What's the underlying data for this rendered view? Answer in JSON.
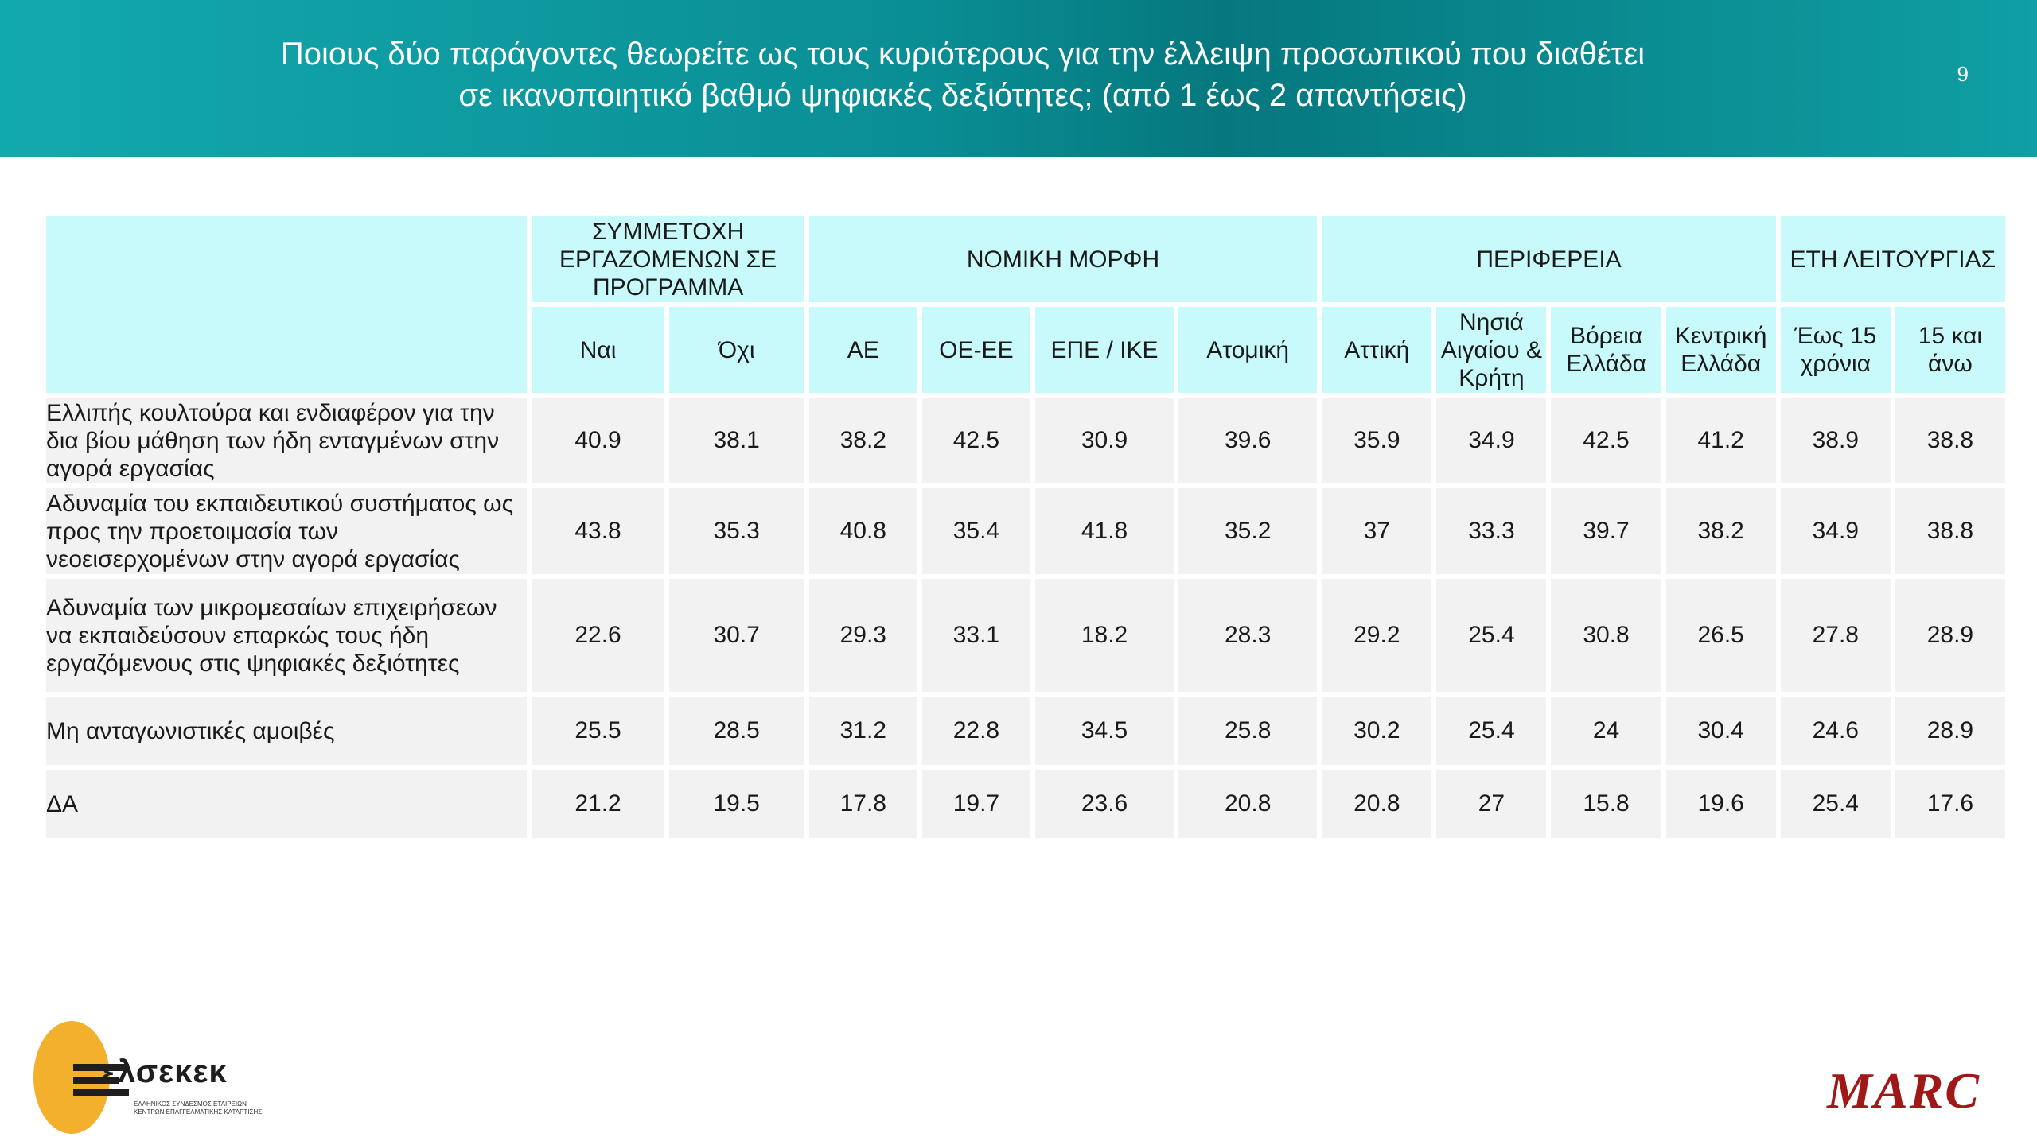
{
  "header": {
    "title": "Ποιους δύο παράγοντες θεωρείτε ως τους κυριότερους για την έλλειψη προσωπικού που διαθέτει\nσε ικανοποιητικό βαθμό ψηφιακές δεξιότητες; (από 1 έως 2 απαντήσεις)",
    "page_number": "9"
  },
  "table": {
    "groups": [
      {
        "label": "ΣΥΜΜΕΤΟΧΗ ΕΡΓΑΖΟΜΕΝΩΝ ΣΕ ΠΡΟΓΡΑΜΜΑ"
      },
      {
        "label": "ΝΟΜΙΚΗ ΜΟΡΦΗ"
      },
      {
        "label": "ΠΕΡΙΦΕΡΕΙΑ"
      },
      {
        "label": "ΕΤΗ ΛΕΙΤΟΥΡΓΙΑΣ"
      }
    ],
    "columns": [
      "Ναι",
      "Όχι",
      "ΑΕ",
      "ΟΕ-ΕΕ",
      "ΕΠΕ / ΙΚΕ",
      "Ατομική",
      "Αττική",
      "Νησιά Αιγαίου & Κρήτη",
      "Βόρεια Ελλάδα",
      "Κεντρική Ελλάδα",
      "Έως 15 χρόνια",
      "15 και άνω"
    ],
    "rows": [
      {
        "label": "Ελλιπής κουλτούρα και ενδιαφέρον για την δια βίου μάθηση των ήδη ενταγμένων στην αγορά εργασίας",
        "values": [
          "40.9",
          "38.1",
          "38.2",
          "42.5",
          "30.9",
          "39.6",
          "35.9",
          "34.9",
          "42.5",
          "41.2",
          "38.9",
          "38.8"
        ]
      },
      {
        "label": "Αδυναμία του εκπαιδευτικού συστήματος ως προς την προετοιμασία των νεοεισερχομένων στην αγορά εργασίας",
        "values": [
          "43.8",
          "35.3",
          "40.8",
          "35.4",
          "41.8",
          "35.2",
          "37",
          "33.3",
          "39.7",
          "38.2",
          "34.9",
          "38.8"
        ]
      },
      {
        "label": "Αδυναμία των μικρομεσαίων επιχειρήσεων να εκπαιδεύσουν επαρκώς τους ήδη εργαζόμενους στις ψηφιακές δεξιότητες",
        "values": [
          "22.6",
          "30.7",
          "29.3",
          "33.1",
          "18.2",
          "28.3",
          "29.2",
          "25.4",
          "30.8",
          "26.5",
          "27.8",
          "28.9"
        ]
      },
      {
        "label": "Μη ανταγωνιστικές αμοιβές",
        "values": [
          "25.5",
          "28.5",
          "31.2",
          "22.8",
          "34.5",
          "25.8",
          "30.2",
          "25.4",
          "24",
          "30.4",
          "24.6",
          "28.9"
        ]
      },
      {
        "label": "ΔΑ",
        "values": [
          "21.2",
          "19.5",
          "17.8",
          "19.7",
          "23.6",
          "20.8",
          "20.8",
          "27",
          "15.8",
          "19.6",
          "25.4",
          "17.6"
        ]
      }
    ]
  },
  "logos": {
    "left_brand": "ελσεκεκ",
    "left_tagline_1": "ΕΛΛΗΝΙΚΟΣ ΣΥΝΔΕΣΜΟΣ ΕΤΑΙΡΕΙΩΝ",
    "left_tagline_2": "ΚΕΝΤΡΩΝ ΕΠΑΓΓΕΛΜΑΤΙΚΗΣ ΚΑΤΑΡΤΙΣΗΣ",
    "right_brand": "MARC"
  }
}
